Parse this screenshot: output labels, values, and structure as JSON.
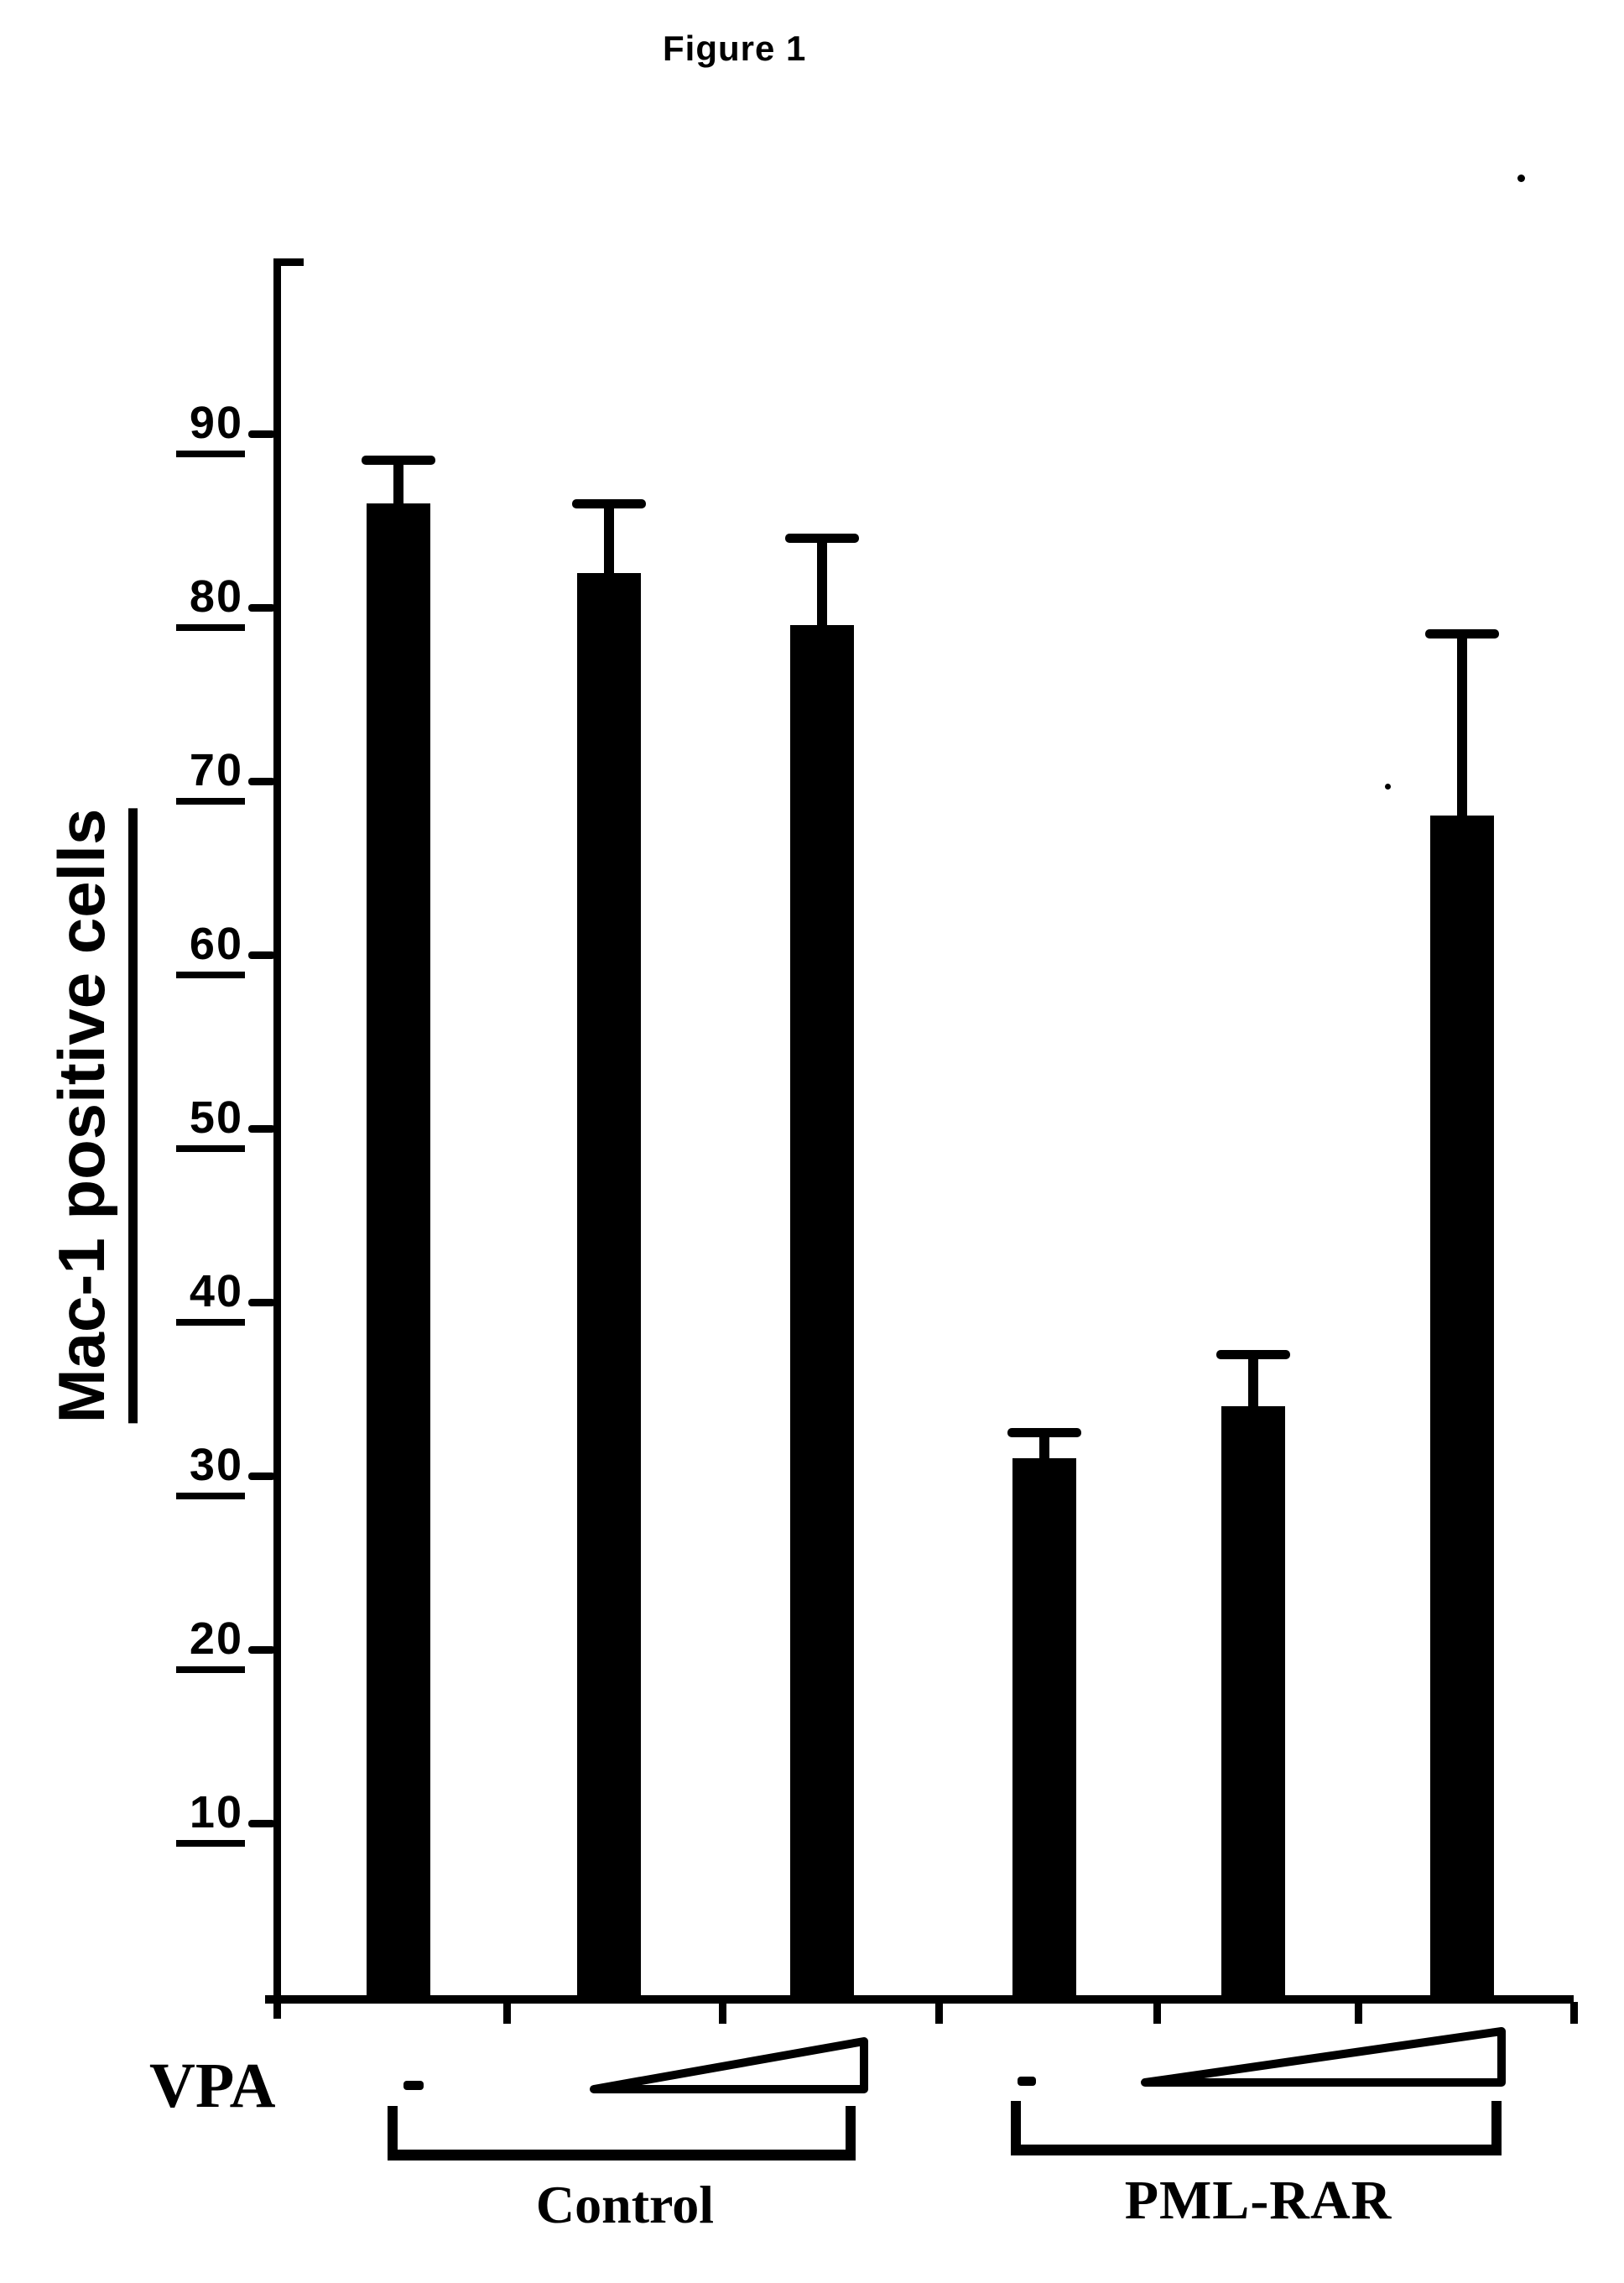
{
  "figure": {
    "title": "Figure 1"
  },
  "chart_data": {
    "type": "bar",
    "title": "Figure 1",
    "ylabel": "Mac-1 positive cells",
    "xlabel": "",
    "ylim": [
      0,
      100
    ],
    "yticks": [
      90,
      80,
      70,
      60,
      50,
      40,
      30,
      20,
      10
    ],
    "grid": false,
    "legend": null,
    "bar_color": "#000000",
    "error_bars": true,
    "groups": [
      {
        "label": "Control",
        "bars": [
          {
            "vpa": "-",
            "value": 86,
            "error": 2.5
          },
          {
            "vpa": "VPA (low dose)",
            "value": 82,
            "error": 4
          },
          {
            "vpa": "VPA (high dose)",
            "value": 79,
            "error": 5
          }
        ]
      },
      {
        "label": "PML-RAR",
        "bars": [
          {
            "vpa": "-",
            "value": 31,
            "error": 1.5
          },
          {
            "vpa": "VPA (low dose)",
            "value": 34,
            "error": 3
          },
          {
            "vpa": "VPA (high dose)",
            "value": 68,
            "error": 10.5
          }
        ]
      }
    ]
  },
  "annotations": {
    "vpa_row_label": "VPA",
    "no_vpa_symbol": "-",
    "vpa_wedge_meaning": "increasing VPA dose",
    "group_labels": [
      "Control",
      "PML-RAR"
    ]
  }
}
